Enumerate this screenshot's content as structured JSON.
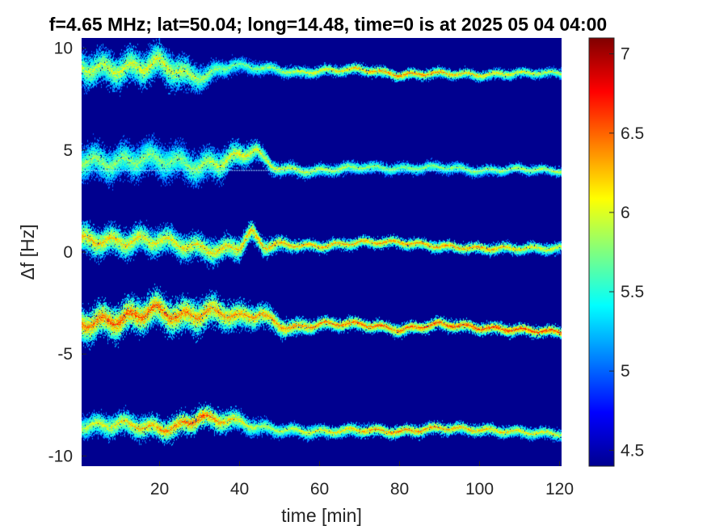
{
  "chart_data": {
    "type": "heatmap",
    "title": "f=4.65 MHz;  lat=50.04; long=14.48, time=0 is at 2025 05 04 04:00",
    "xlabel": "time [min]",
    "ylabel": "Δf [Hz]",
    "xlim": [
      0.5,
      120.5
    ],
    "ylim": [
      -10.5,
      10.5
    ],
    "x_ticks": [
      20,
      40,
      60,
      80,
      100,
      120
    ],
    "x_tick_labels": [
      "20",
      "40",
      "60",
      "80",
      "100",
      "120"
    ],
    "y_ticks": [
      10,
      5,
      0,
      -5,
      -10
    ],
    "y_tick_labels": [
      "10",
      "5",
      "0",
      "-5",
      "-10"
    ],
    "colorbar": {
      "range": [
        4.4,
        7.1
      ],
      "ticks": [
        7,
        6.5,
        6,
        5.5,
        5,
        4.5
      ],
      "tick_labels": [
        "7",
        "6.5",
        "6",
        "5.5",
        "5",
        "4.5"
      ],
      "colormap": "jet"
    },
    "background_value": 4.4,
    "grid": false,
    "traces": [
      {
        "name": "",
        "points": [
          [
            0,
            9.1
          ],
          [
            5,
            9.0
          ],
          [
            10,
            9.0
          ],
          [
            15,
            9.1
          ],
          [
            20,
            9.3
          ],
          [
            25,
            8.9
          ],
          [
            28,
            8.5
          ],
          [
            33,
            8.8
          ],
          [
            38,
            9.2
          ],
          [
            42,
            9.1
          ],
          [
            48,
            9.0
          ],
          [
            55,
            8.8
          ],
          [
            60,
            8.9
          ],
          [
            70,
            9.0
          ],
          [
            80,
            8.7
          ],
          [
            90,
            8.8
          ],
          [
            100,
            8.7
          ],
          [
            110,
            8.8
          ],
          [
            120,
            8.8
          ]
        ],
        "spread": [
          [
            0,
            0.9
          ],
          [
            25,
            0.9
          ],
          [
            35,
            0.45
          ],
          [
            50,
            0.3
          ],
          [
            120,
            0.25
          ]
        ],
        "peak": [
          [
            0,
            6.0
          ],
          [
            20,
            6.2
          ],
          [
            40,
            5.7
          ],
          [
            80,
            6.6
          ],
          [
            120,
            6.0
          ]
        ]
      },
      {
        "name": "",
        "points": [
          [
            0,
            4.5
          ],
          [
            5,
            4.4
          ],
          [
            10,
            4.4
          ],
          [
            15,
            4.6
          ],
          [
            20,
            4.6
          ],
          [
            25,
            4.4
          ],
          [
            30,
            4.2
          ],
          [
            35,
            4.4
          ],
          [
            40,
            4.8
          ],
          [
            44,
            5.0
          ],
          [
            48,
            4.2
          ],
          [
            55,
            4.0
          ],
          [
            60,
            4.0
          ],
          [
            70,
            4.2
          ],
          [
            80,
            4.1
          ],
          [
            90,
            4.2
          ],
          [
            100,
            4.0
          ],
          [
            110,
            4.1
          ],
          [
            120,
            4.0
          ]
        ],
        "spread": [
          [
            0,
            0.9
          ],
          [
            20,
            0.9
          ],
          [
            35,
            0.8
          ],
          [
            50,
            0.35
          ],
          [
            120,
            0.25
          ]
        ],
        "peak": [
          [
            0,
            5.9
          ],
          [
            25,
            5.8
          ],
          [
            40,
            6.2
          ],
          [
            80,
            5.8
          ],
          [
            120,
            6.0
          ]
        ]
      },
      {
        "name": "",
        "points": [
          [
            0,
            0.6
          ],
          [
            5,
            0.6
          ],
          [
            10,
            0.5
          ],
          [
            15,
            0.6
          ],
          [
            20,
            0.6
          ],
          [
            25,
            0.4
          ],
          [
            30,
            0.2
          ],
          [
            35,
            0.1
          ],
          [
            40,
            0.3
          ],
          [
            43,
            1.0
          ],
          [
            46,
            0.3
          ],
          [
            50,
            0.4
          ],
          [
            60,
            0.3
          ],
          [
            70,
            0.5
          ],
          [
            80,
            0.5
          ],
          [
            90,
            0.3
          ],
          [
            100,
            0.2
          ],
          [
            110,
            0.2
          ],
          [
            120,
            0.2
          ]
        ],
        "spread": [
          [
            0,
            0.8
          ],
          [
            25,
            0.7
          ],
          [
            40,
            0.6
          ],
          [
            55,
            0.3
          ],
          [
            120,
            0.3
          ]
        ],
        "peak": [
          [
            0,
            6.4
          ],
          [
            20,
            6.2
          ],
          [
            42,
            6.4
          ],
          [
            100,
            6.5
          ],
          [
            120,
            6.1
          ]
        ]
      },
      {
        "name": "",
        "points": [
          [
            0,
            -3.5
          ],
          [
            5,
            -3.4
          ],
          [
            10,
            -3.3
          ],
          [
            15,
            -3.0
          ],
          [
            20,
            -2.8
          ],
          [
            25,
            -3.2
          ],
          [
            30,
            -3.0
          ],
          [
            35,
            -2.9
          ],
          [
            40,
            -3.2
          ],
          [
            45,
            -3.0
          ],
          [
            50,
            -3.6
          ],
          [
            55,
            -3.7
          ],
          [
            60,
            -3.5
          ],
          [
            70,
            -3.5
          ],
          [
            80,
            -3.8
          ],
          [
            90,
            -3.5
          ],
          [
            100,
            -3.7
          ],
          [
            110,
            -3.8
          ],
          [
            120,
            -3.9
          ]
        ],
        "spread": [
          [
            0,
            0.9
          ],
          [
            30,
            0.9
          ],
          [
            45,
            0.6
          ],
          [
            60,
            0.35
          ],
          [
            120,
            0.3
          ]
        ],
        "peak": [
          [
            0,
            6.6
          ],
          [
            10,
            6.8
          ],
          [
            40,
            6.5
          ],
          [
            80,
            6.7
          ],
          [
            105,
            6.8
          ],
          [
            120,
            6.8
          ]
        ]
      },
      {
        "name": "",
        "points": [
          [
            0,
            -8.5
          ],
          [
            5,
            -8.5
          ],
          [
            10,
            -8.4
          ],
          [
            15,
            -8.5
          ],
          [
            20,
            -8.7
          ],
          [
            25,
            -8.5
          ],
          [
            30,
            -8.1
          ],
          [
            35,
            -8.2
          ],
          [
            40,
            -8.3
          ],
          [
            45,
            -8.6
          ],
          [
            50,
            -8.7
          ],
          [
            60,
            -8.8
          ],
          [
            70,
            -8.7
          ],
          [
            80,
            -8.8
          ],
          [
            90,
            -8.6
          ],
          [
            100,
            -8.7
          ],
          [
            110,
            -8.8
          ],
          [
            120,
            -8.9
          ]
        ],
        "spread": [
          [
            0,
            0.6
          ],
          [
            35,
            0.6
          ],
          [
            50,
            0.35
          ],
          [
            120,
            0.3
          ]
        ],
        "peak": [
          [
            0,
            6.0
          ],
          [
            30,
            6.8
          ],
          [
            45,
            5.9
          ],
          [
            80,
            6.6
          ],
          [
            100,
            6.4
          ],
          [
            120,
            6.1
          ]
        ]
      }
    ],
    "reference_line": {
      "y": 4.0,
      "x_start": 1,
      "x_end": 120
    }
  }
}
